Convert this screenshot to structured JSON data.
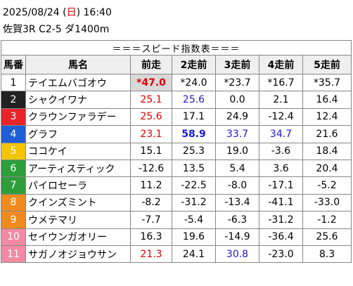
{
  "header": {
    "date_parts": [
      "2025/08/24 (",
      "日",
      ") 16:40"
    ],
    "race": "佐賀3R C2-5 ダ1400m"
  },
  "table": {
    "title": "＝＝＝スピード指数表＝＝＝",
    "columns": [
      "馬番",
      "馬名",
      "前走",
      "2走前",
      "3走前",
      "4走前",
      "5走前"
    ],
    "rows": [
      [
        "1",
        "テイエムバゴオウ",
        "*47.0",
        "*24.0",
        "*23.7",
        "*16.7",
        "*35.7"
      ],
      [
        "2",
        "シャクイワナ",
        "25.1",
        "25.6",
        "0.0",
        "2.1",
        "16.4"
      ],
      [
        "3",
        "クラウンファラデー",
        "25.6",
        "17.1",
        "24.9",
        "-12.4",
        "12.4"
      ],
      [
        "4",
        "グラフ",
        "23.1",
        "58.9",
        "33.7",
        "34.7",
        "21.6"
      ],
      [
        "5",
        "ココケイ",
        "15.1",
        "25.3",
        "19.0",
        "-3.6",
        "18.4"
      ],
      [
        "6",
        "アーティスティック",
        "-12.6",
        "13.5",
        "5.4",
        "3.6",
        "20.4"
      ],
      [
        "7",
        "パイロセーラ",
        "11.2",
        "-22.5",
        "-8.0",
        "-17.1",
        "-5.2"
      ],
      [
        "8",
        "クインズミント",
        "-8.2",
        "-31.2",
        "-13.4",
        "-41.1",
        "-33.0"
      ],
      [
        "9",
        "ウメテマリ",
        "-7.7",
        "-5.4",
        "-6.3",
        "-31.2",
        "-1.2"
      ],
      [
        "10",
        "セイウンガオリー",
        "16.3",
        "19.6",
        "-14.9",
        "-36.4",
        "25.6"
      ],
      [
        "11",
        "サガノオジョウサン",
        "21.3",
        "24.1",
        "30.8",
        "-23.0",
        "8.3"
      ]
    ]
  }
}
